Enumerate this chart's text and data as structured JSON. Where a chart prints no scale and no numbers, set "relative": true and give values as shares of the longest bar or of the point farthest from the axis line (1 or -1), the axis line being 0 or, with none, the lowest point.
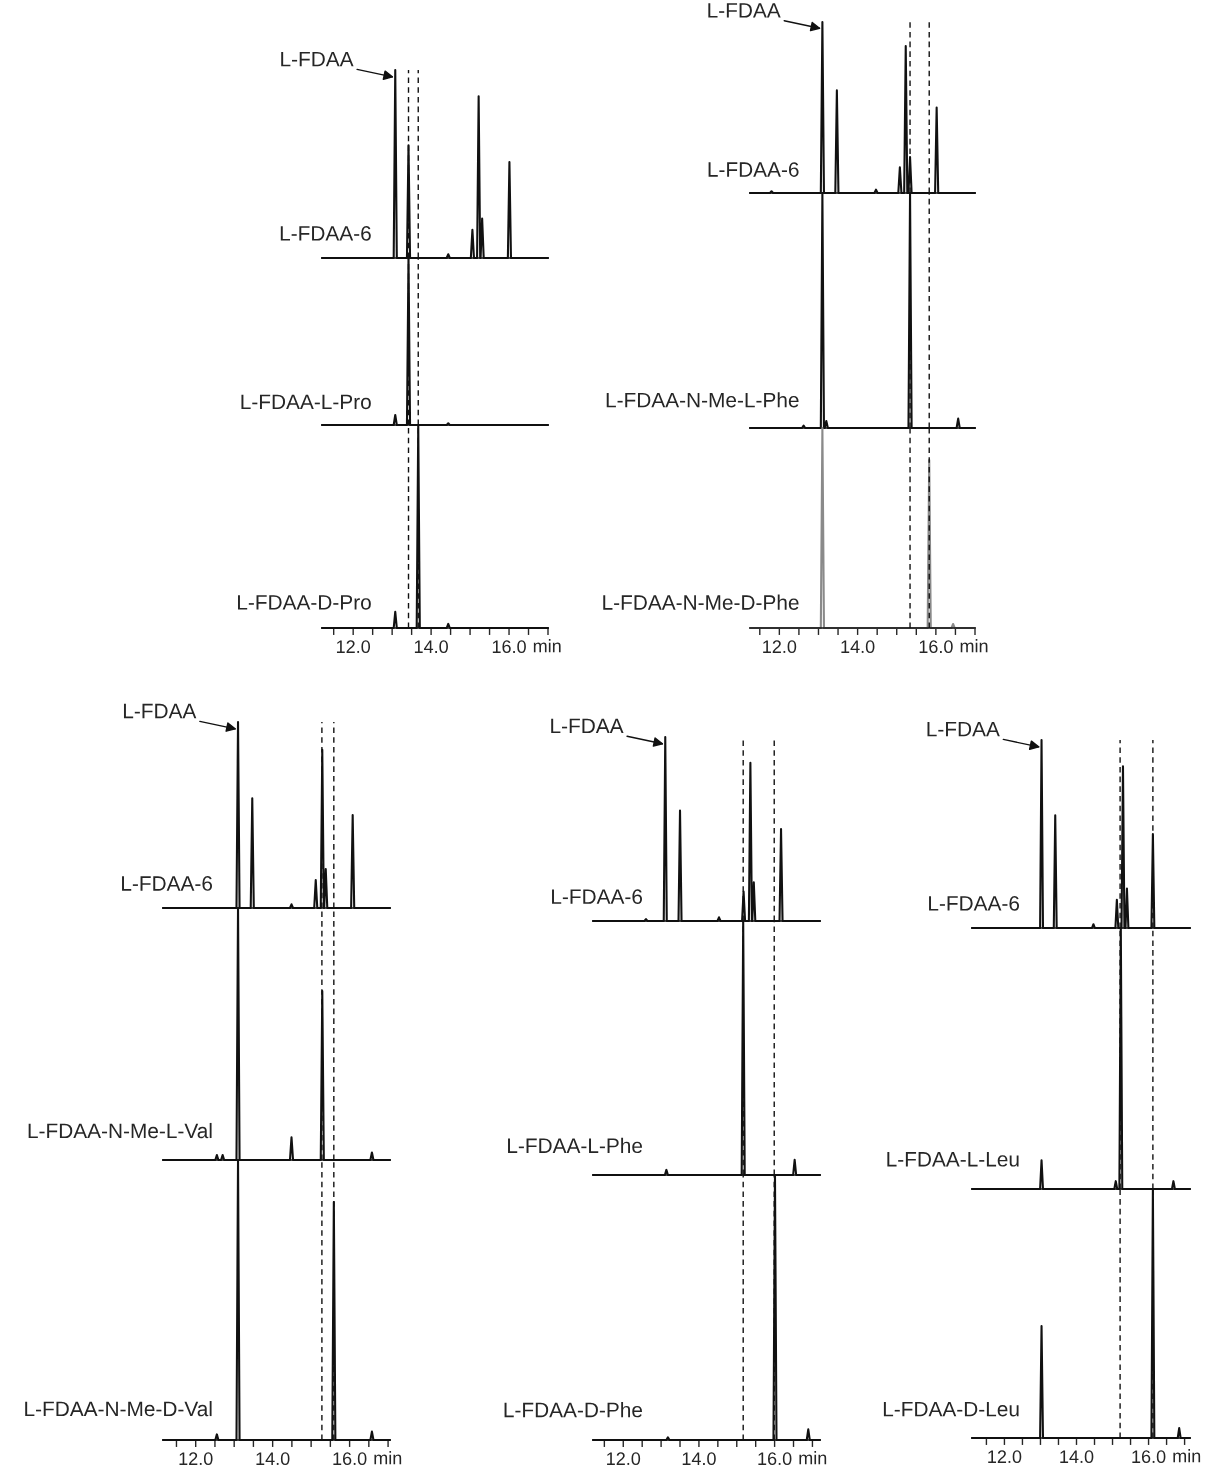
{
  "chart_data": [
    {
      "type": "line",
      "relative": true,
      "xlim": [
        11.2,
        17.0
      ],
      "tick_labels": false,
      "annotations": [
        {
          "text": "L-FDAA",
          "x": 13.08,
          "y": 1
        }
      ],
      "ref_lines": [
        {
          "axis": "x",
          "value": 13.42,
          "line_style": "dashed"
        },
        {
          "axis": "x",
          "value": 13.67,
          "line_style": "dashed"
        }
      ],
      "series": [
        {
          "name": "L-FDAA-6",
          "color": "#111111",
          "x": [
            11.2,
            13.04,
            13.08,
            13.12,
            13.38,
            13.42,
            13.46,
            14.4,
            14.44,
            14.48,
            15.02,
            15.06,
            15.1,
            15.18,
            15.22,
            15.26,
            15.27,
            15.31,
            15.35,
            15.97,
            16.01,
            16.05,
            17.0
          ],
          "values": [
            0,
            0,
            1,
            0,
            0,
            0.6,
            0,
            0,
            0.02,
            0,
            0,
            0.15,
            0,
            0,
            0.86,
            0,
            0,
            0.21,
            0,
            0,
            0.51,
            0,
            0
          ]
        }
      ]
    },
    {
      "type": "line",
      "relative": true,
      "xlim": [
        11.2,
        17.0
      ],
      "tick_labels": false,
      "ref_lines": [
        {
          "axis": "x",
          "value": 13.42,
          "line_style": "dashed"
        },
        {
          "axis": "x",
          "value": 13.67,
          "line_style": "dashed"
        }
      ],
      "series": [
        {
          "name": "L-FDAA-L-Pro",
          "color": "#111111",
          "x": [
            11.2,
            13.04,
            13.08,
            13.12,
            13.38,
            13.42,
            13.46,
            14.4,
            14.44,
            14.48,
            17.0
          ],
          "values": [
            0,
            0,
            0.06,
            0,
            0,
            1,
            0,
            0,
            0.01,
            0,
            0
          ]
        }
      ]
    },
    {
      "type": "line",
      "relative": true,
      "xlim": [
        11.2,
        17.0
      ],
      "tick_labels": "x",
      "xlabel": "min",
      "xticks": [
        {
          "value": 11.5,
          "label": null
        },
        {
          "value": 12,
          "label": "12.0"
        },
        {
          "value": 12.5,
          "label": null
        },
        {
          "value": 13,
          "label": null
        },
        {
          "value": 13.5,
          "label": null
        },
        {
          "value": 14,
          "label": "14.0"
        },
        {
          "value": 14.5,
          "label": null
        },
        {
          "value": 15,
          "label": null
        },
        {
          "value": 15.5,
          "label": null
        },
        {
          "value": 16,
          "label": "16.0"
        },
        {
          "value": 16.5,
          "label": null
        },
        {
          "value": 17,
          "label": null
        }
      ],
      "ref_lines": [
        {
          "axis": "x",
          "value": 13.42,
          "line_style": "dashed"
        },
        {
          "axis": "x",
          "value": 13.67,
          "line_style": "dashed"
        }
      ],
      "series": [
        {
          "name": "L-FDAA-D-Pro",
          "color": "#111111",
          "x": [
            11.2,
            13.04,
            13.08,
            13.12,
            13.63,
            13.67,
            13.71,
            14.4,
            14.44,
            14.48,
            17.0
          ],
          "values": [
            0,
            0,
            0.08,
            0,
            0,
            1,
            0,
            0,
            0.02,
            0,
            0
          ]
        }
      ]
    },
    {
      "type": "line",
      "relative": true,
      "xlim": [
        11.25,
        17.0
      ],
      "tick_labels": false,
      "annotations": [
        {
          "text": "L-FDAA",
          "x": 13.1,
          "y": 1
        }
      ],
      "ref_lines": [
        {
          "axis": "x",
          "value": 15.34,
          "line_style": "dashed"
        },
        {
          "axis": "x",
          "value": 15.83,
          "line_style": "dashed"
        }
      ],
      "series": [
        {
          "name": "L-FDAA-6",
          "color": "#111111",
          "x": [
            11.25,
            11.76,
            11.8,
            11.84,
            13.06,
            13.1,
            13.14,
            13.43,
            13.47,
            13.51,
            14.43,
            14.47,
            14.51,
            15.04,
            15.08,
            15.12,
            15.19,
            15.23,
            15.27,
            15.3,
            15.34,
            15.38,
            15.98,
            16.02,
            16.06,
            17.0
          ],
          "values": [
            0,
            0,
            0.01,
            0,
            0,
            1,
            0,
            0,
            0.6,
            0,
            0,
            0.02,
            0,
            0,
            0.15,
            0,
            0,
            0.86,
            0,
            0,
            0.21,
            0,
            0,
            0.5,
            0,
            0
          ]
        }
      ]
    },
    {
      "type": "line",
      "relative": true,
      "xlim": [
        11.25,
        17.0
      ],
      "tick_labels": false,
      "ref_lines": [
        {
          "axis": "x",
          "value": 15.34,
          "line_style": "dashed"
        },
        {
          "axis": "x",
          "value": 15.83,
          "line_style": "dashed"
        }
      ],
      "series": [
        {
          "name": "L-FDAA-N-Me-L-Phe",
          "color": "#111111",
          "x": [
            11.25,
            12.58,
            12.62,
            12.66,
            13.06,
            13.1,
            13.14,
            13.16,
            13.2,
            13.24,
            15.3,
            15.34,
            15.38,
            16.53,
            16.57,
            16.61,
            17.0
          ],
          "values": [
            0,
            0,
            0.01,
            0,
            0,
            1,
            0,
            0,
            0.03,
            0,
            0,
            1,
            0,
            0,
            0.04,
            0,
            0
          ]
        }
      ]
    },
    {
      "type": "line",
      "relative": true,
      "xlim": [
        11.25,
        17.0
      ],
      "tick_labels": "x",
      "xlabel": "min",
      "xticks": [
        {
          "value": 11.5,
          "label": null
        },
        {
          "value": 12,
          "label": "12.0"
        },
        {
          "value": 12.5,
          "label": null
        },
        {
          "value": 13,
          "label": null
        },
        {
          "value": 13.5,
          "label": null
        },
        {
          "value": 14,
          "label": "14.0"
        },
        {
          "value": 14.5,
          "label": null
        },
        {
          "value": 15,
          "label": null
        },
        {
          "value": 15.5,
          "label": null
        },
        {
          "value": 16,
          "label": "16.0"
        },
        {
          "value": 16.5,
          "label": null
        },
        {
          "value": 17,
          "label": null
        }
      ],
      "ref_lines": [
        {
          "axis": "x",
          "value": 15.34,
          "line_style": "dashed"
        },
        {
          "axis": "x",
          "value": 15.83,
          "line_style": "dashed"
        }
      ],
      "series": [
        {
          "name": "L-FDAA-N-Me-D-Phe",
          "color": "#8a8a8a",
          "x": [
            11.25,
            13.06,
            13.1,
            13.14,
            15.79,
            15.83,
            15.87,
            16.4,
            16.44,
            16.48,
            17.0
          ],
          "values": [
            0,
            0,
            1,
            0,
            0,
            0.84,
            0,
            0,
            0.02,
            0,
            0
          ]
        }
      ]
    },
    {
      "type": "line",
      "relative": true,
      "xlim": [
        11.15,
        17.05
      ],
      "tick_labels": false,
      "annotations": [
        {
          "text": "L-FDAA",
          "x": 13.1,
          "y": 1
        }
      ],
      "ref_lines": [
        {
          "axis": "x",
          "value": 15.28,
          "line_style": "dashed"
        },
        {
          "axis": "x",
          "value": 15.59,
          "line_style": "dashed"
        }
      ],
      "series": [
        {
          "name": "L-FDAA-6",
          "color": "#111111",
          "x": [
            11.15,
            13.06,
            13.1,
            13.14,
            13.43,
            13.47,
            13.51,
            14.45,
            14.49,
            14.53,
            15.08,
            15.12,
            15.16,
            15.25,
            15.29,
            15.33,
            15.34,
            15.38,
            15.42,
            16.04,
            16.08,
            16.12,
            17.05
          ],
          "values": [
            0,
            0,
            1,
            0,
            0,
            0.59,
            0,
            0,
            0.02,
            0,
            0,
            0.15,
            0,
            0,
            0.85,
            0,
            0,
            0.21,
            0,
            0,
            0.5,
            0,
            0
          ]
        }
      ]
    },
    {
      "type": "line",
      "relative": true,
      "xlim": [
        11.15,
        17.05
      ],
      "tick_labels": false,
      "ref_lines": [
        {
          "axis": "x",
          "value": 15.28,
          "line_style": "dashed"
        },
        {
          "axis": "x",
          "value": 15.59,
          "line_style": "dashed"
        }
      ],
      "series": [
        {
          "name": "L-FDAA-N-Me-L-Val",
          "color": "#111111",
          "x": [
            11.15,
            12.51,
            12.55,
            12.59,
            12.66,
            12.7,
            12.74,
            13.06,
            13.1,
            13.14,
            14.45,
            14.49,
            14.53,
            15.25,
            15.29,
            15.33,
            16.54,
            16.58,
            16.62,
            17.05
          ],
          "values": [
            0,
            0,
            0.02,
            0,
            0,
            0.02,
            0,
            0,
            1,
            0,
            0,
            0.09,
            0,
            0,
            0.67,
            0,
            0,
            0.03,
            0,
            0
          ]
        }
      ]
    },
    {
      "type": "line",
      "relative": true,
      "xlim": [
        11.15,
        17.05
      ],
      "tick_labels": "x",
      "xlabel": "min",
      "xticks": [
        {
          "value": 11.5,
          "label": null
        },
        {
          "value": 12,
          "label": "12.0"
        },
        {
          "value": 12.5,
          "label": null
        },
        {
          "value": 13,
          "label": null
        },
        {
          "value": 13.5,
          "label": null
        },
        {
          "value": 14,
          "label": "14.0"
        },
        {
          "value": 14.5,
          "label": null
        },
        {
          "value": 15,
          "label": null
        },
        {
          "value": 15.5,
          "label": null
        },
        {
          "value": 16,
          "label": "16.0"
        },
        {
          "value": 16.5,
          "label": null
        },
        {
          "value": 17,
          "label": null
        }
      ],
      "ref_lines": [
        {
          "axis": "x",
          "value": 15.28,
          "line_style": "dashed"
        },
        {
          "axis": "x",
          "value": 15.59,
          "line_style": "dashed"
        }
      ],
      "series": [
        {
          "name": "L-FDAA-N-Me-D-Val",
          "color": "#111111",
          "x": [
            11.15,
            12.51,
            12.55,
            12.59,
            13.06,
            13.1,
            13.14,
            15.55,
            15.59,
            15.63,
            16.54,
            16.58,
            16.62,
            17.05
          ],
          "values": [
            0,
            0,
            0.02,
            0,
            0,
            1,
            0,
            0,
            0.85,
            0,
            0,
            0.03,
            0,
            0
          ]
        }
      ]
    },
    {
      "type": "line",
      "relative": true,
      "xlim": [
        11.2,
        17.2
      ],
      "tick_labels": false,
      "annotations": [
        {
          "text": "L-FDAA",
          "x": 13.11,
          "y": 1
        }
      ],
      "ref_lines": [
        {
          "axis": "x",
          "value": 15.17,
          "line_style": "dashed"
        },
        {
          "axis": "x",
          "value": 15.99,
          "line_style": "dashed"
        }
      ],
      "series": [
        {
          "name": "L-FDAA-6",
          "color": "#111111",
          "x": [
            11.2,
            12.56,
            12.6,
            12.64,
            13.07,
            13.11,
            13.15,
            13.46,
            13.5,
            13.54,
            14.49,
            14.53,
            14.57,
            15.14,
            15.18,
            15.22,
            15.32,
            15.36,
            15.4,
            15.41,
            15.45,
            15.49,
            16.13,
            16.17,
            16.21,
            17.2
          ],
          "values": [
            0,
            0,
            0.01,
            0,
            0,
            1,
            0,
            0,
            0.6,
            0,
            0,
            0.02,
            0,
            0,
            0.16,
            0,
            0,
            0.86,
            0,
            0,
            0.21,
            0,
            0,
            0.5,
            0,
            0
          ]
        }
      ]
    },
    {
      "type": "line",
      "relative": true,
      "xlim": [
        11.2,
        17.2
      ],
      "tick_labels": false,
      "ref_lines": [
        {
          "axis": "x",
          "value": 15.17,
          "line_style": "dashed"
        },
        {
          "axis": "x",
          "value": 15.99,
          "line_style": "dashed"
        }
      ],
      "series": [
        {
          "name": "L-FDAA-L-Phe",
          "color": "#111111",
          "x": [
            11.2,
            13.1,
            13.14,
            13.18,
            15.13,
            15.17,
            15.21,
            16.49,
            16.53,
            16.57,
            17.2
          ],
          "values": [
            0,
            0,
            0.02,
            0,
            0,
            1,
            0,
            0,
            0.06,
            0,
            0
          ]
        }
      ]
    },
    {
      "type": "line",
      "relative": true,
      "xlim": [
        11.2,
        17.2
      ],
      "tick_labels": "x",
      "xlabel": "min",
      "xticks": [
        {
          "value": 11.5,
          "label": null
        },
        {
          "value": 12,
          "label": "12.0"
        },
        {
          "value": 12.5,
          "label": null
        },
        {
          "value": 13,
          "label": null
        },
        {
          "value": 13.5,
          "label": null
        },
        {
          "value": 14,
          "label": "14.0"
        },
        {
          "value": 14.5,
          "label": null
        },
        {
          "value": 15,
          "label": null
        },
        {
          "value": 15.5,
          "label": null
        },
        {
          "value": 16,
          "label": "16.0"
        },
        {
          "value": 16.5,
          "label": null
        },
        {
          "value": 17,
          "label": null
        }
      ],
      "ref_lines": [
        {
          "axis": "x",
          "value": 15.17,
          "line_style": "dashed"
        },
        {
          "axis": "x",
          "value": 15.99,
          "line_style": "dashed"
        }
      ],
      "series": [
        {
          "name": "L-FDAA-D-Phe",
          "color": "#111111",
          "x": [
            11.2,
            13.14,
            13.18,
            13.22,
            15.97,
            16.01,
            16.05,
            16.85,
            16.89,
            16.93,
            17.2
          ],
          "values": [
            0,
            0,
            0.01,
            0,
            0,
            1,
            0,
            0,
            0.04,
            0,
            0
          ]
        }
      ]
    },
    {
      "type": "line",
      "relative": true,
      "xlim": [
        11.1,
        17.15
      ],
      "tick_labels": false,
      "annotations": [
        {
          "text": "L-FDAA",
          "x": 13.03,
          "y": 1
        }
      ],
      "ref_lines": [
        {
          "axis": "x",
          "value": 15.21,
          "line_style": "dashed"
        },
        {
          "axis": "x",
          "value": 16.12,
          "line_style": "dashed"
        }
      ],
      "series": [
        {
          "name": "L-FDAA-6",
          "color": "#111111",
          "x": [
            11.1,
            12.99,
            13.03,
            13.07,
            13.37,
            13.41,
            13.45,
            14.43,
            14.47,
            14.51,
            15.08,
            15.12,
            15.16,
            15.25,
            15.29,
            15.33,
            15.36,
            15.4,
            15.44,
            16.08,
            16.12,
            16.16,
            17.15
          ],
          "values": [
            0,
            0,
            1,
            0,
            0,
            0.6,
            0,
            0,
            0.02,
            0,
            0,
            0.15,
            0,
            0,
            0.86,
            0,
            0,
            0.21,
            0,
            0,
            0.5,
            0,
            0
          ]
        }
      ]
    },
    {
      "type": "line",
      "relative": true,
      "xlim": [
        11.1,
        17.15
      ],
      "tick_labels": false,
      "ref_lines": [
        {
          "axis": "x",
          "value": 15.21,
          "line_style": "dashed"
        },
        {
          "axis": "x",
          "value": 16.12,
          "line_style": "dashed"
        }
      ],
      "series": [
        {
          "name": "L-FDAA-L-Leu",
          "color": "#111111",
          "x": [
            11.1,
            12.99,
            13.03,
            13.07,
            15.05,
            15.09,
            15.13,
            15.19,
            15.23,
            15.27,
            16.65,
            16.69,
            16.73,
            17.15
          ],
          "values": [
            0,
            0,
            0.11,
            0,
            0,
            0.03,
            0,
            0,
            1,
            0,
            0,
            0.03,
            0,
            0
          ]
        }
      ]
    },
    {
      "type": "line",
      "relative": true,
      "xlim": [
        11.1,
        17.15
      ],
      "tick_labels": "x",
      "xlabel": "min",
      "xticks": [
        {
          "value": 11.5,
          "label": null
        },
        {
          "value": 12,
          "label": "12.0"
        },
        {
          "value": 12.5,
          "label": null
        },
        {
          "value": 13,
          "label": null
        },
        {
          "value": 13.5,
          "label": null
        },
        {
          "value": 14,
          "label": "14.0"
        },
        {
          "value": 14.5,
          "label": null
        },
        {
          "value": 15,
          "label": null
        },
        {
          "value": 15.5,
          "label": null
        },
        {
          "value": 16,
          "label": "16.0"
        },
        {
          "value": 16.5,
          "label": null
        },
        {
          "value": 17,
          "label": null
        }
      ],
      "ref_lines": [
        {
          "axis": "x",
          "value": 15.21,
          "line_style": "dashed"
        },
        {
          "axis": "x",
          "value": 16.12,
          "line_style": "dashed"
        }
      ],
      "series": [
        {
          "name": "L-FDAA-D-Leu",
          "color": "#111111",
          "x": [
            11.1,
            12.99,
            13.03,
            13.07,
            16.08,
            16.12,
            16.16,
            16.81,
            16.85,
            16.89,
            17.15
          ],
          "values": [
            0,
            0,
            0.45,
            0,
            0,
            1,
            0,
            0,
            0.04,
            0,
            0
          ]
        }
      ]
    }
  ]
}
